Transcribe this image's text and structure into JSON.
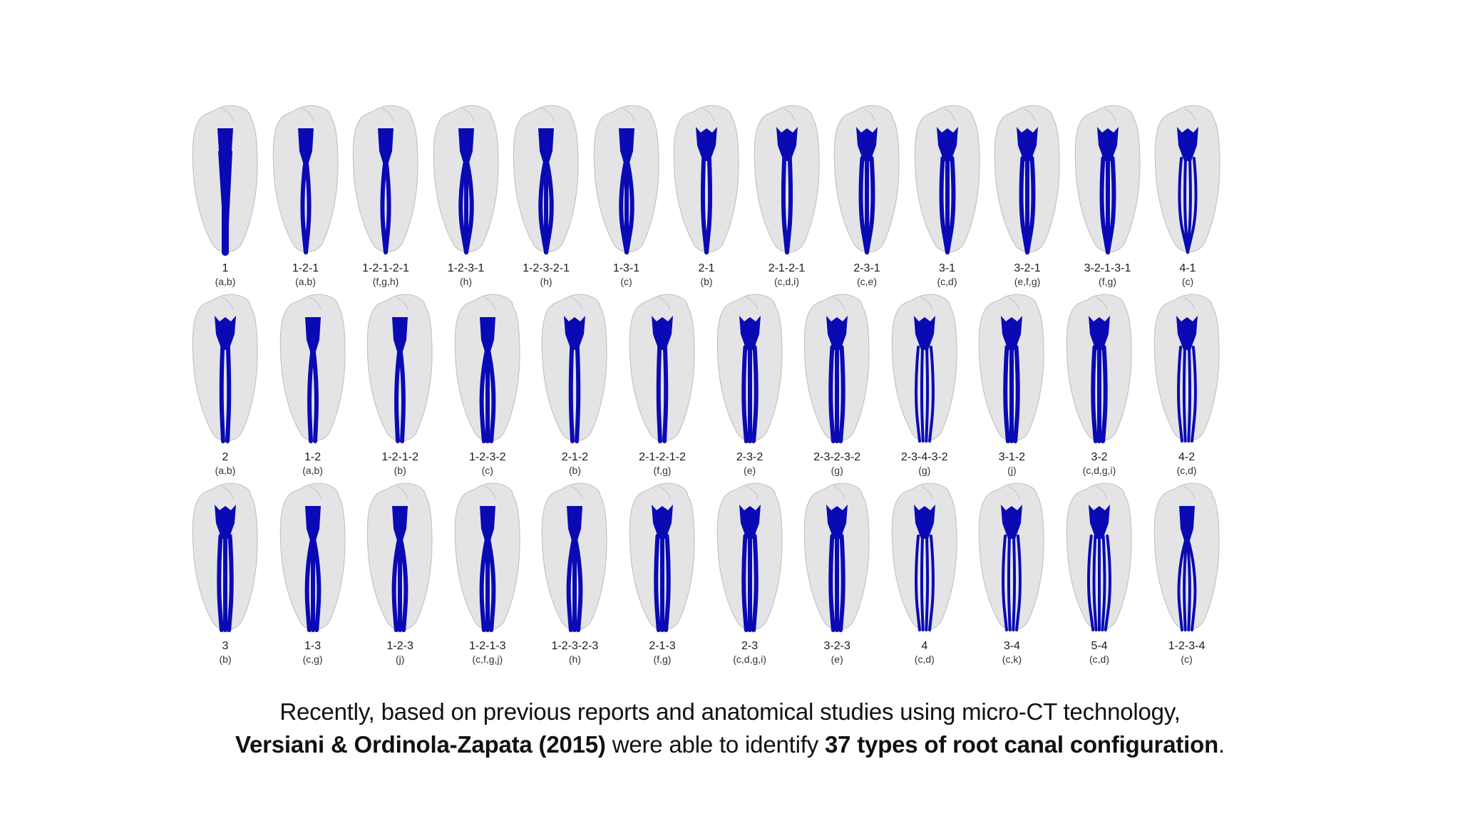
{
  "figure": {
    "colors": {
      "canal": "#0a0ab4",
      "tooth": "#e4e4e6",
      "tooth_outline": "#c4c4c8"
    },
    "rows": [
      [
        {
          "code": "1",
          "refs": "(a,b)"
        },
        {
          "code": "1-2-1",
          "refs": "(a,b)"
        },
        {
          "code": "1-2-1-2-1",
          "refs": "(f,g,h)"
        },
        {
          "code": "1-2-3-1",
          "refs": "(h)"
        },
        {
          "code": "1-2-3-2-1",
          "refs": "(h)"
        },
        {
          "code": "1-3-1",
          "refs": "(c)"
        },
        {
          "code": "2-1",
          "refs": "(b)"
        },
        {
          "code": "2-1-2-1",
          "refs": "(c,d,i)"
        },
        {
          "code": "2-3-1",
          "refs": "(c,e)"
        },
        {
          "code": "3-1",
          "refs": "(c,d)"
        },
        {
          "code": "3-2-1",
          "refs": "(e,f,g)"
        },
        {
          "code": "3-2-1-3-1",
          "refs": "(f,g)"
        },
        {
          "code": "4-1",
          "refs": "(c)"
        }
      ],
      [
        {
          "code": "2",
          "refs": "(a,b)"
        },
        {
          "code": "1-2",
          "refs": "(a,b)"
        },
        {
          "code": "1-2-1-2",
          "refs": "(b)"
        },
        {
          "code": "1-2-3-2",
          "refs": "(c)"
        },
        {
          "code": "2-1-2",
          "refs": "(b)"
        },
        {
          "code": "2-1-2-1-2",
          "refs": "(f,g)"
        },
        {
          "code": "2-3-2",
          "refs": "(e)"
        },
        {
          "code": "2-3-2-3-2",
          "refs": "(g)"
        },
        {
          "code": "2-3-4-3-2",
          "refs": "(g)"
        },
        {
          "code": "3-1-2",
          "refs": "(j)"
        },
        {
          "code": "3-2",
          "refs": "(c,d,g,i)"
        },
        {
          "code": "4-2",
          "refs": "(c,d)"
        }
      ],
      [
        {
          "code": "3",
          "refs": "(b)"
        },
        {
          "code": "1-3",
          "refs": "(c,g)"
        },
        {
          "code": "1-2-3",
          "refs": "(j)"
        },
        {
          "code": "1-2-1-3",
          "refs": "(c,f,g,j)"
        },
        {
          "code": "1-2-3-2-3",
          "refs": "(h)"
        },
        {
          "code": "2-1-3",
          "refs": "(f,g)"
        },
        {
          "code": "2-3",
          "refs": "(c,d,g,i)"
        },
        {
          "code": "3-2-3",
          "refs": "(e)"
        },
        {
          "code": "4",
          "refs": "(c,d)"
        },
        {
          "code": "3-4",
          "refs": "(c,k)"
        },
        {
          "code": "5-4",
          "refs": "(c,d)"
        },
        {
          "code": "1-2-3-4",
          "refs": "(c)"
        }
      ]
    ]
  },
  "caption": {
    "line1": "Recently, based on previous reports and anatomical studies using micro-CT technology,",
    "line2_bold_a": "Versiani & Ordinola-Zapata (2015)",
    "line2_mid": " were able to identify ",
    "line2_bold_b": "37 types of root canal configuration",
    "line2_end": "."
  }
}
